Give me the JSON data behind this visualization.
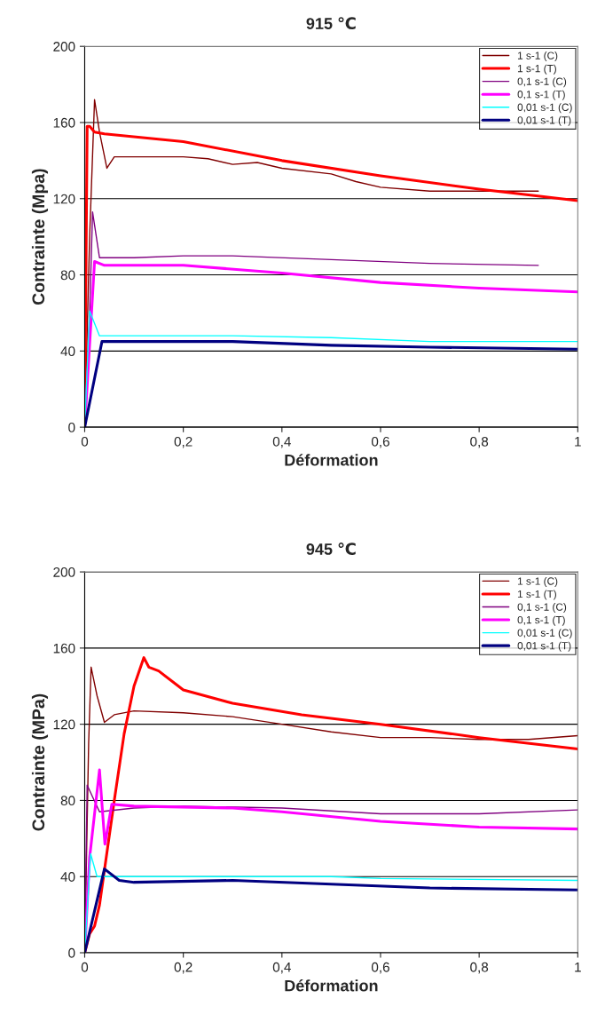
{
  "chart_data": [
    {
      "type": "line",
      "title": "915 ℃",
      "xlabel": "Déformation",
      "ylabel": "Contrainte (Mpa)",
      "xlim": [
        0,
        1
      ],
      "ylim": [
        0,
        200
      ],
      "xticks": [
        0,
        {
          "value": 0.2,
          "label": "0,2"
        },
        {
          "value": 0.4,
          "label": "0,4"
        },
        {
          "value": 0.6,
          "label": "0,6"
        },
        {
          "value": 0.8,
          "label": "0,8"
        },
        1
      ],
      "yticks": [
        0,
        40,
        80,
        120,
        160,
        200
      ],
      "grid": "y",
      "legend": "top right",
      "series": [
        {
          "name": "1 s-1 (C)",
          "color": "#800000",
          "x": [
            0,
            0.01,
            0.02,
            0.03,
            0.045,
            0.06,
            0.1,
            0.2,
            0.25,
            0.3,
            0.35,
            0.4,
            0.5,
            0.55,
            0.6,
            0.7,
            0.8,
            0.9,
            0.92
          ],
          "values": [
            0,
            100,
            172,
            155,
            136,
            142,
            142,
            142,
            141,
            138,
            139,
            136,
            133,
            129,
            126,
            124,
            124,
            124,
            124
          ]
        },
        {
          "name": "1 s-1 (T)",
          "color": "#ff0000",
          "x": [
            0,
            0.005,
            0.01,
            0.02,
            0.04,
            0.2,
            0.4,
            0.6,
            0.8,
            1
          ],
          "values": [
            0,
            158,
            158,
            155,
            154,
            150,
            140,
            132,
            125,
            119
          ]
        },
        {
          "name": "0,1 s-1 (C)",
          "color": "#800080",
          "x": [
            0,
            0.01,
            0.016,
            0.03,
            0.1,
            0.2,
            0.3,
            0.5,
            0.7,
            0.92
          ],
          "values": [
            0,
            60,
            113,
            89,
            89,
            90,
            90,
            88,
            86,
            85
          ]
        },
        {
          "name": "0,1 s-1 (T)",
          "color": "#ff00ff",
          "x": [
            0,
            0.02,
            0.04,
            0.2,
            0.4,
            0.6,
            0.8,
            1
          ],
          "values": [
            0,
            87,
            85,
            85,
            81,
            76,
            73,
            71
          ]
        },
        {
          "name": "0,01 s-1 (C)",
          "color": "#00ffff",
          "x": [
            0,
            0.01,
            0.03,
            0.1,
            0.3,
            0.5,
            0.7,
            1
          ],
          "values": [
            0,
            61,
            48,
            48,
            48,
            47,
            45,
            45
          ]
        },
        {
          "name": "0,01 s-1 (T)",
          "color": "#000080",
          "x": [
            0,
            0.035,
            0.1,
            0.3,
            0.5,
            0.7,
            1
          ],
          "values": [
            0,
            45,
            45,
            45,
            43,
            42,
            41
          ]
        }
      ]
    },
    {
      "type": "line",
      "title": "945 ℃",
      "xlabel": "Déformation",
      "ylabel": "Contrainte (MPa)",
      "xlim": [
        0,
        1
      ],
      "ylim": [
        0,
        200
      ],
      "xticks": [
        0,
        {
          "value": 0.2,
          "label": "0,2"
        },
        {
          "value": 0.4,
          "label": "0,4"
        },
        {
          "value": 0.6,
          "label": "0,6"
        },
        {
          "value": 0.8,
          "label": "0,8"
        },
        1
      ],
      "yticks": [
        0,
        40,
        80,
        120,
        160,
        200
      ],
      "grid": "y",
      "legend": "top right",
      "series": [
        {
          "name": "1 s-1 (C)",
          "color": "#800000",
          "x": [
            0,
            0.008,
            0.013,
            0.025,
            0.04,
            0.06,
            0.1,
            0.2,
            0.3,
            0.4,
            0.5,
            0.6,
            0.7,
            0.8,
            0.9,
            1
          ],
          "values": [
            0,
            110,
            150,
            135,
            121,
            125,
            127,
            126,
            124,
            120,
            116,
            113,
            113,
            112,
            112,
            114
          ]
        },
        {
          "name": "1 s-1 (T)",
          "color": "#ff0000",
          "x": [
            0,
            0.01,
            0.02,
            0.03,
            0.06,
            0.08,
            0.1,
            0.12,
            0.13,
            0.15,
            0.2,
            0.3,
            0.44,
            0.6,
            0.8,
            1
          ],
          "values": [
            0,
            10,
            14,
            25,
            80,
            115,
            140,
            155,
            150,
            148,
            138,
            131,
            125,
            120,
            113,
            107
          ]
        },
        {
          "name": "0,1 s-1 (C)",
          "color": "#800080",
          "x": [
            0,
            0.005,
            0.03,
            0.1,
            0.2,
            0.4,
            0.6,
            0.8,
            1
          ],
          "values": [
            0,
            88,
            74,
            76,
            77,
            76,
            73,
            73,
            75
          ]
        },
        {
          "name": "0,1 s-1 (T)",
          "color": "#ff00ff",
          "x": [
            0,
            0.01,
            0.03,
            0.041,
            0.055,
            0.1,
            0.3,
            0.4,
            0.6,
            0.8,
            1
          ],
          "values": [
            0,
            50,
            96,
            57,
            78,
            77,
            76,
            74,
            69,
            66,
            65
          ]
        },
        {
          "name": "0,01 s-1 (C)",
          "color": "#00ffff",
          "x": [
            0,
            0.012,
            0.025,
            0.2,
            0.5,
            0.6,
            1
          ],
          "values": [
            0,
            52,
            40,
            40,
            40,
            39,
            38
          ]
        },
        {
          "name": "0,01 s-1 (T)",
          "color": "#000080",
          "x": [
            0,
            0.04,
            0.07,
            0.1,
            0.3,
            0.5,
            0.7,
            1
          ],
          "values": [
            0,
            44,
            38,
            37,
            38,
            36,
            34,
            33
          ]
        }
      ]
    }
  ]
}
